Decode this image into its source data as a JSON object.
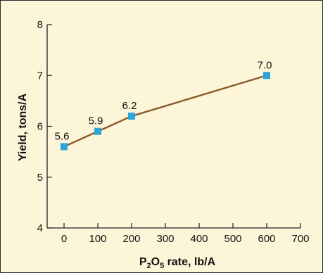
{
  "chart_data": {
    "type": "line",
    "title": "",
    "xlabel_parts": [
      "P",
      "2",
      "O",
      "5",
      " rate, lb/A"
    ],
    "ylabel": "Yield, tons/A",
    "x": [
      0,
      100,
      200,
      600
    ],
    "values": [
      5.6,
      5.9,
      6.2,
      7.0
    ],
    "data_labels": [
      "5.6",
      "5.9",
      "6.2",
      "7.0"
    ],
    "xlim": [
      -50,
      700
    ],
    "ylim": [
      4,
      8
    ],
    "x_ticks": [
      0,
      100,
      200,
      300,
      400,
      500,
      600,
      700
    ],
    "x_tick_labels": [
      "0",
      "100",
      "200",
      "300",
      "400",
      "500",
      "600",
      "700"
    ],
    "y_ticks": [
      4,
      5,
      6,
      7,
      8
    ],
    "y_tick_labels": [
      "4",
      "5",
      "6",
      "7",
      "8"
    ],
    "grid": false,
    "colors": {
      "line": "#8b5a2b",
      "marker": "#2aa6dc",
      "background": "#fdf5d8",
      "axis": "#222222"
    }
  }
}
